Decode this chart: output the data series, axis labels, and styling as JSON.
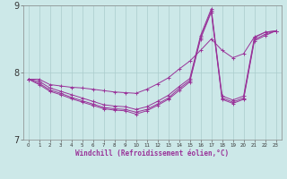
{
  "xlabel": "Windchill (Refroidissement éolien,°C)",
  "xlim": [
    -0.5,
    23.5
  ],
  "ylim": [
    7,
    9
  ],
  "yticks": [
    7,
    8,
    9
  ],
  "xticks": [
    0,
    1,
    2,
    3,
    4,
    5,
    6,
    7,
    8,
    9,
    10,
    11,
    12,
    13,
    14,
    15,
    16,
    17,
    18,
    19,
    20,
    21,
    22,
    23
  ],
  "background_color": "#cce8e8",
  "grid_color": "#aacccc",
  "line_color": "#993399",
  "lines": [
    [
      7.9,
      7.9,
      7.82,
      7.8,
      7.78,
      7.77,
      7.75,
      7.73,
      7.71,
      7.7,
      7.69,
      7.75,
      7.83,
      7.92,
      8.05,
      8.17,
      8.33,
      8.5,
      8.33,
      8.22,
      8.28,
      8.53,
      8.6,
      8.62
    ],
    [
      7.9,
      7.87,
      7.77,
      7.72,
      7.67,
      7.62,
      7.57,
      7.52,
      7.5,
      7.49,
      7.45,
      7.49,
      7.57,
      7.66,
      7.79,
      7.91,
      8.55,
      8.95,
      7.65,
      7.59,
      7.65,
      8.52,
      8.6,
      8.62
    ],
    [
      7.9,
      7.84,
      7.74,
      7.69,
      7.63,
      7.58,
      7.53,
      7.48,
      7.46,
      7.45,
      7.41,
      7.45,
      7.53,
      7.62,
      7.76,
      7.88,
      8.52,
      8.92,
      7.62,
      7.56,
      7.62,
      8.49,
      8.57,
      8.62
    ],
    [
      7.9,
      7.82,
      7.72,
      7.67,
      7.61,
      7.56,
      7.51,
      7.46,
      7.44,
      7.43,
      7.38,
      7.43,
      7.51,
      7.6,
      7.73,
      7.86,
      8.5,
      8.9,
      7.6,
      7.54,
      7.6,
      8.47,
      8.55,
      8.62
    ]
  ]
}
